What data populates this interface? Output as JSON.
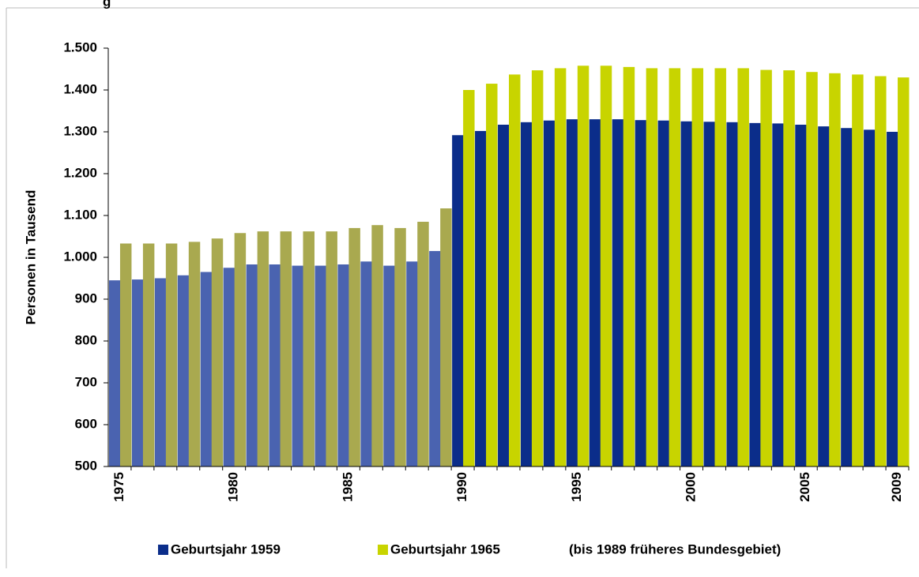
{
  "chart_data": {
    "type": "bar",
    "title": "g",
    "y_label": "Personen in Tausend",
    "categories": [
      {
        "value": 1975,
        "label": "1975"
      },
      null,
      null,
      null,
      null,
      {
        "value": 1980,
        "label": "1980"
      },
      null,
      null,
      null,
      null,
      {
        "value": 1985,
        "label": "1985"
      },
      null,
      null,
      null,
      null,
      {
        "value": 1990,
        "label": "1990"
      },
      null,
      null,
      null,
      null,
      {
        "value": 1995,
        "label": "1995"
      },
      null,
      null,
      null,
      null,
      {
        "value": 2000,
        "label": "2000"
      },
      null,
      null,
      null,
      null,
      {
        "value": 2005,
        "label": "2005"
      },
      null,
      null,
      null,
      {
        "value": 2009,
        "label": "2009"
      }
    ],
    "series": [
      {
        "name": "Geburtsjahr 1959",
        "color": "#0b2d8a",
        "colors": [
          "#4a63b0",
          "#4a63b0",
          "#4a63b0",
          "#4a63b0",
          "#4a63b0",
          "#4a63b0",
          "#4a63b0",
          "#4a63b0",
          "#4a63b0",
          "#4a63b0",
          "#4a63b0",
          "#4a63b0",
          "#4a63b0",
          "#4a63b0",
          "#4a63b0",
          "#0b2d8a",
          "#0b2d8a",
          "#0b2d8a",
          "#0b2d8a",
          "#0b2d8a",
          "#0b2d8a",
          "#0b2d8a",
          "#0b2d8a",
          "#0b2d8a",
          "#0b2d8a",
          "#0b2d8a",
          "#0b2d8a",
          "#0b2d8a",
          "#0b2d8a",
          "#0b2d8a",
          "#0b2d8a",
          "#0b2d8a",
          "#0b2d8a",
          "#0b2d8a",
          "#0b2d8a"
        ],
        "values": [
          945,
          947,
          950,
          957,
          965,
          975,
          983,
          983,
          980,
          980,
          983,
          990,
          980,
          990,
          1015,
          1292,
          1302,
          1317,
          1323,
          1327,
          1330,
          1330,
          1330,
          1328,
          1327,
          1325,
          1324,
          1323,
          1321,
          1320,
          1317,
          1313,
          1309,
          1305,
          1300
        ]
      },
      {
        "name": "Geburtsjahr 1965",
        "color": "#c8d400",
        "colors": [
          "#a9a94f",
          "#a9a94f",
          "#a9a94f",
          "#a9a94f",
          "#a9a94f",
          "#a9a94f",
          "#a9a94f",
          "#a9a94f",
          "#a9a94f",
          "#a9a94f",
          "#a9a94f",
          "#a9a94f",
          "#a9a94f",
          "#a9a94f",
          "#a9a94f",
          "#c8d400",
          "#c8d400",
          "#c8d400",
          "#c8d400",
          "#c8d400",
          "#c8d400",
          "#c8d400",
          "#c8d400",
          "#c8d400",
          "#c8d400",
          "#c8d400",
          "#c8d400",
          "#c8d400",
          "#c8d400",
          "#c8d400",
          "#c8d400",
          "#c8d400",
          "#c8d400",
          "#c8d400",
          "#c8d400"
        ],
        "values": [
          1033,
          1033,
          1033,
          1037,
          1045,
          1058,
          1062,
          1062,
          1062,
          1062,
          1070,
          1077,
          1070,
          1085,
          1117,
          1400,
          1415,
          1437,
          1447,
          1452,
          1458,
          1458,
          1455,
          1452,
          1452,
          1452,
          1452,
          1452,
          1448,
          1447,
          1443,
          1440,
          1437,
          1433,
          1430
        ]
      }
    ],
    "note": "(bis 1989 früheres Bundesgebiet)",
    "ylim": [
      500,
      1500
    ],
    "yticks": [
      500,
      600,
      700,
      800,
      900,
      {
        "value": 1000,
        "label": "1.000"
      },
      {
        "value": 1100,
        "label": "1.100"
      },
      {
        "value": 1200,
        "label": "1.200"
      },
      {
        "value": 1300,
        "label": "1.300"
      },
      {
        "value": 1400,
        "label": "1.400"
      },
      {
        "value": 1500,
        "label": "1.500"
      }
    ]
  }
}
